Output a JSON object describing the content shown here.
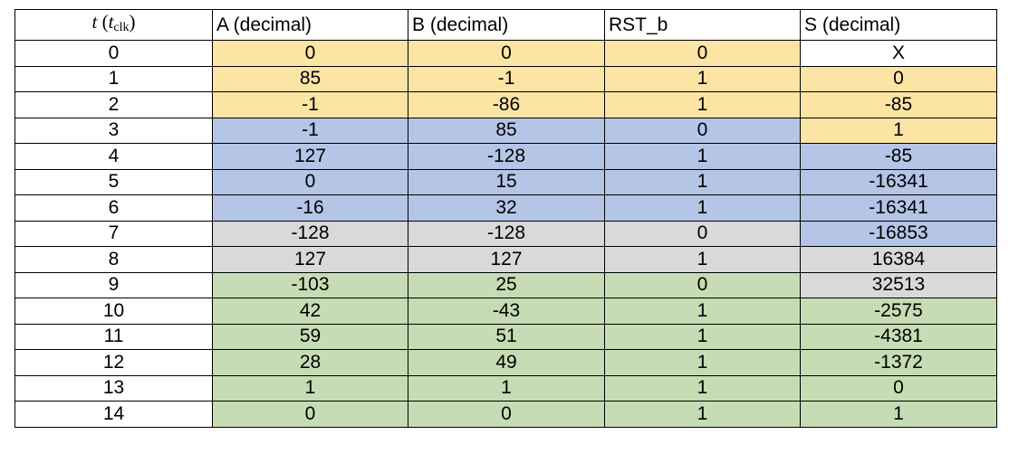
{
  "table": {
    "headers": {
      "t_var": "t",
      "t_open": "(",
      "t_sub_var": "t",
      "t_sub": "clk",
      "t_close": ")",
      "a": "A (decimal)",
      "b": "B (decimal)",
      "rst": "RST_b",
      "s": "S (decimal)"
    },
    "colors": {
      "yellow": "#fce4a5",
      "blue": "#b4c5e6",
      "gray": "#d9d9d9",
      "green": "#c6dcb4",
      "white": "#ffffff"
    },
    "rows": [
      {
        "t": "0",
        "a": "0",
        "b": "0",
        "rst": "0",
        "s": "X",
        "in_color": "yellow",
        "s_color": "white"
      },
      {
        "t": "1",
        "a": "85",
        "b": "-1",
        "rst": "1",
        "s": "0",
        "in_color": "yellow",
        "s_color": "yellow"
      },
      {
        "t": "2",
        "a": "-1",
        "b": "-86",
        "rst": "1",
        "s": "-85",
        "in_color": "yellow",
        "s_color": "yellow"
      },
      {
        "t": "3",
        "a": "-1",
        "b": "85",
        "rst": "0",
        "s": "1",
        "in_color": "blue",
        "s_color": "yellow"
      },
      {
        "t": "4",
        "a": "127",
        "b": "-128",
        "rst": "1",
        "s": "-85",
        "in_color": "blue",
        "s_color": "blue"
      },
      {
        "t": "5",
        "a": "0",
        "b": "15",
        "rst": "1",
        "s": "-16341",
        "in_color": "blue",
        "s_color": "blue"
      },
      {
        "t": "6",
        "a": "-16",
        "b": "32",
        "rst": "1",
        "s": "-16341",
        "in_color": "blue",
        "s_color": "blue"
      },
      {
        "t": "7",
        "a": "-128",
        "b": "-128",
        "rst": "0",
        "s": "-16853",
        "in_color": "gray",
        "s_color": "blue"
      },
      {
        "t": "8",
        "a": "127",
        "b": "127",
        "rst": "1",
        "s": "16384",
        "in_color": "gray",
        "s_color": "gray"
      },
      {
        "t": "9",
        "a": "-103",
        "b": "25",
        "rst": "0",
        "s": "32513",
        "in_color": "green",
        "s_color": "gray"
      },
      {
        "t": "10",
        "a": "42",
        "b": "-43",
        "rst": "1",
        "s": "-2575",
        "in_color": "green",
        "s_color": "green"
      },
      {
        "t": "11",
        "a": "59",
        "b": "51",
        "rst": "1",
        "s": "-4381",
        "in_color": "green",
        "s_color": "green"
      },
      {
        "t": "12",
        "a": "28",
        "b": "49",
        "rst": "1",
        "s": "-1372",
        "in_color": "green",
        "s_color": "green"
      },
      {
        "t": "13",
        "a": "1",
        "b": "1",
        "rst": "1",
        "s": "0",
        "in_color": "green",
        "s_color": "green"
      },
      {
        "t": "14",
        "a": "0",
        "b": "0",
        "rst": "1",
        "s": "1",
        "in_color": "green",
        "s_color": "green"
      }
    ]
  }
}
